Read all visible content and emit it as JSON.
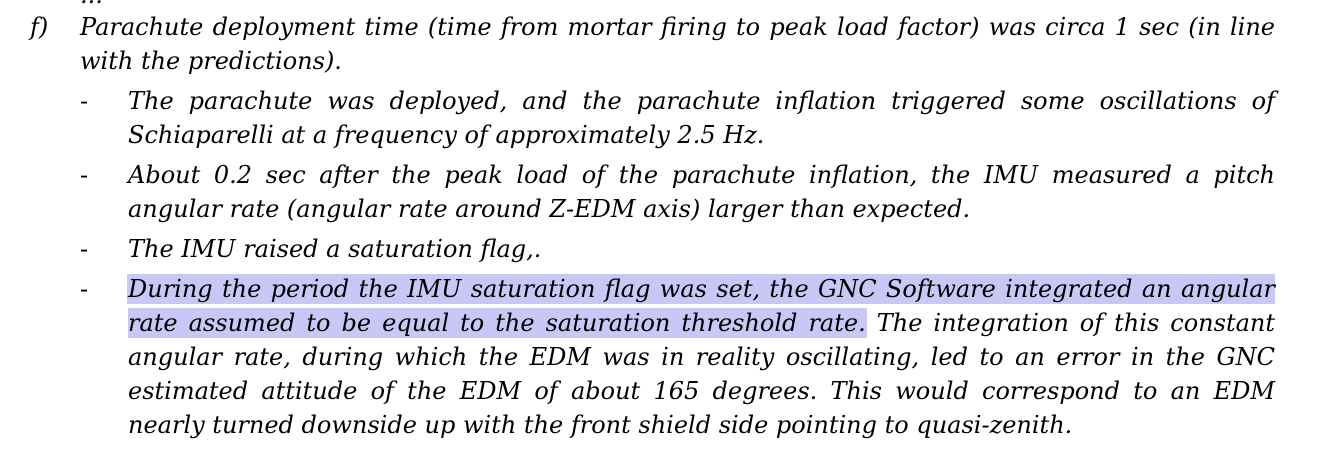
{
  "document": {
    "top_cutoff_text": "...",
    "item_f": {
      "marker": "f)",
      "text": "Parachute deployment time (time from mortar firing to peak load factor) was circa 1 sec (in line with the predictions)."
    },
    "bullets": [
      {
        "dash": "-",
        "text": "The parachute was deployed, and the parachute inflation triggered some oscillations of Schiaparelli at a frequency of approximately 2.5 Hz."
      },
      {
        "dash": "-",
        "text": "About 0.2 sec after the peak load of the parachute inflation, the IMU measured a pitch angular rate (angular rate around Z-EDM axis) larger than expected."
      },
      {
        "dash": "-",
        "text": "The IMU raised a saturation flag,."
      },
      {
        "dash": "-",
        "highlighted_text": "During the period the IMU saturation flag was set, the GNC Software  integrated an angular rate assumed to be equal to the saturation threshold rate.",
        "text": " The integration of this constant angular rate, during which the EDM was in reality oscillating, led to an error in the GNC estimated attitude of the EDM of about 165 degrees. This would correspond to an EDM nearly turned downside up with the front shield side pointing to quasi-zenith."
      }
    ],
    "colors": {
      "text": "#000000",
      "background": "#ffffff",
      "highlight": "#c9c7f6"
    }
  }
}
